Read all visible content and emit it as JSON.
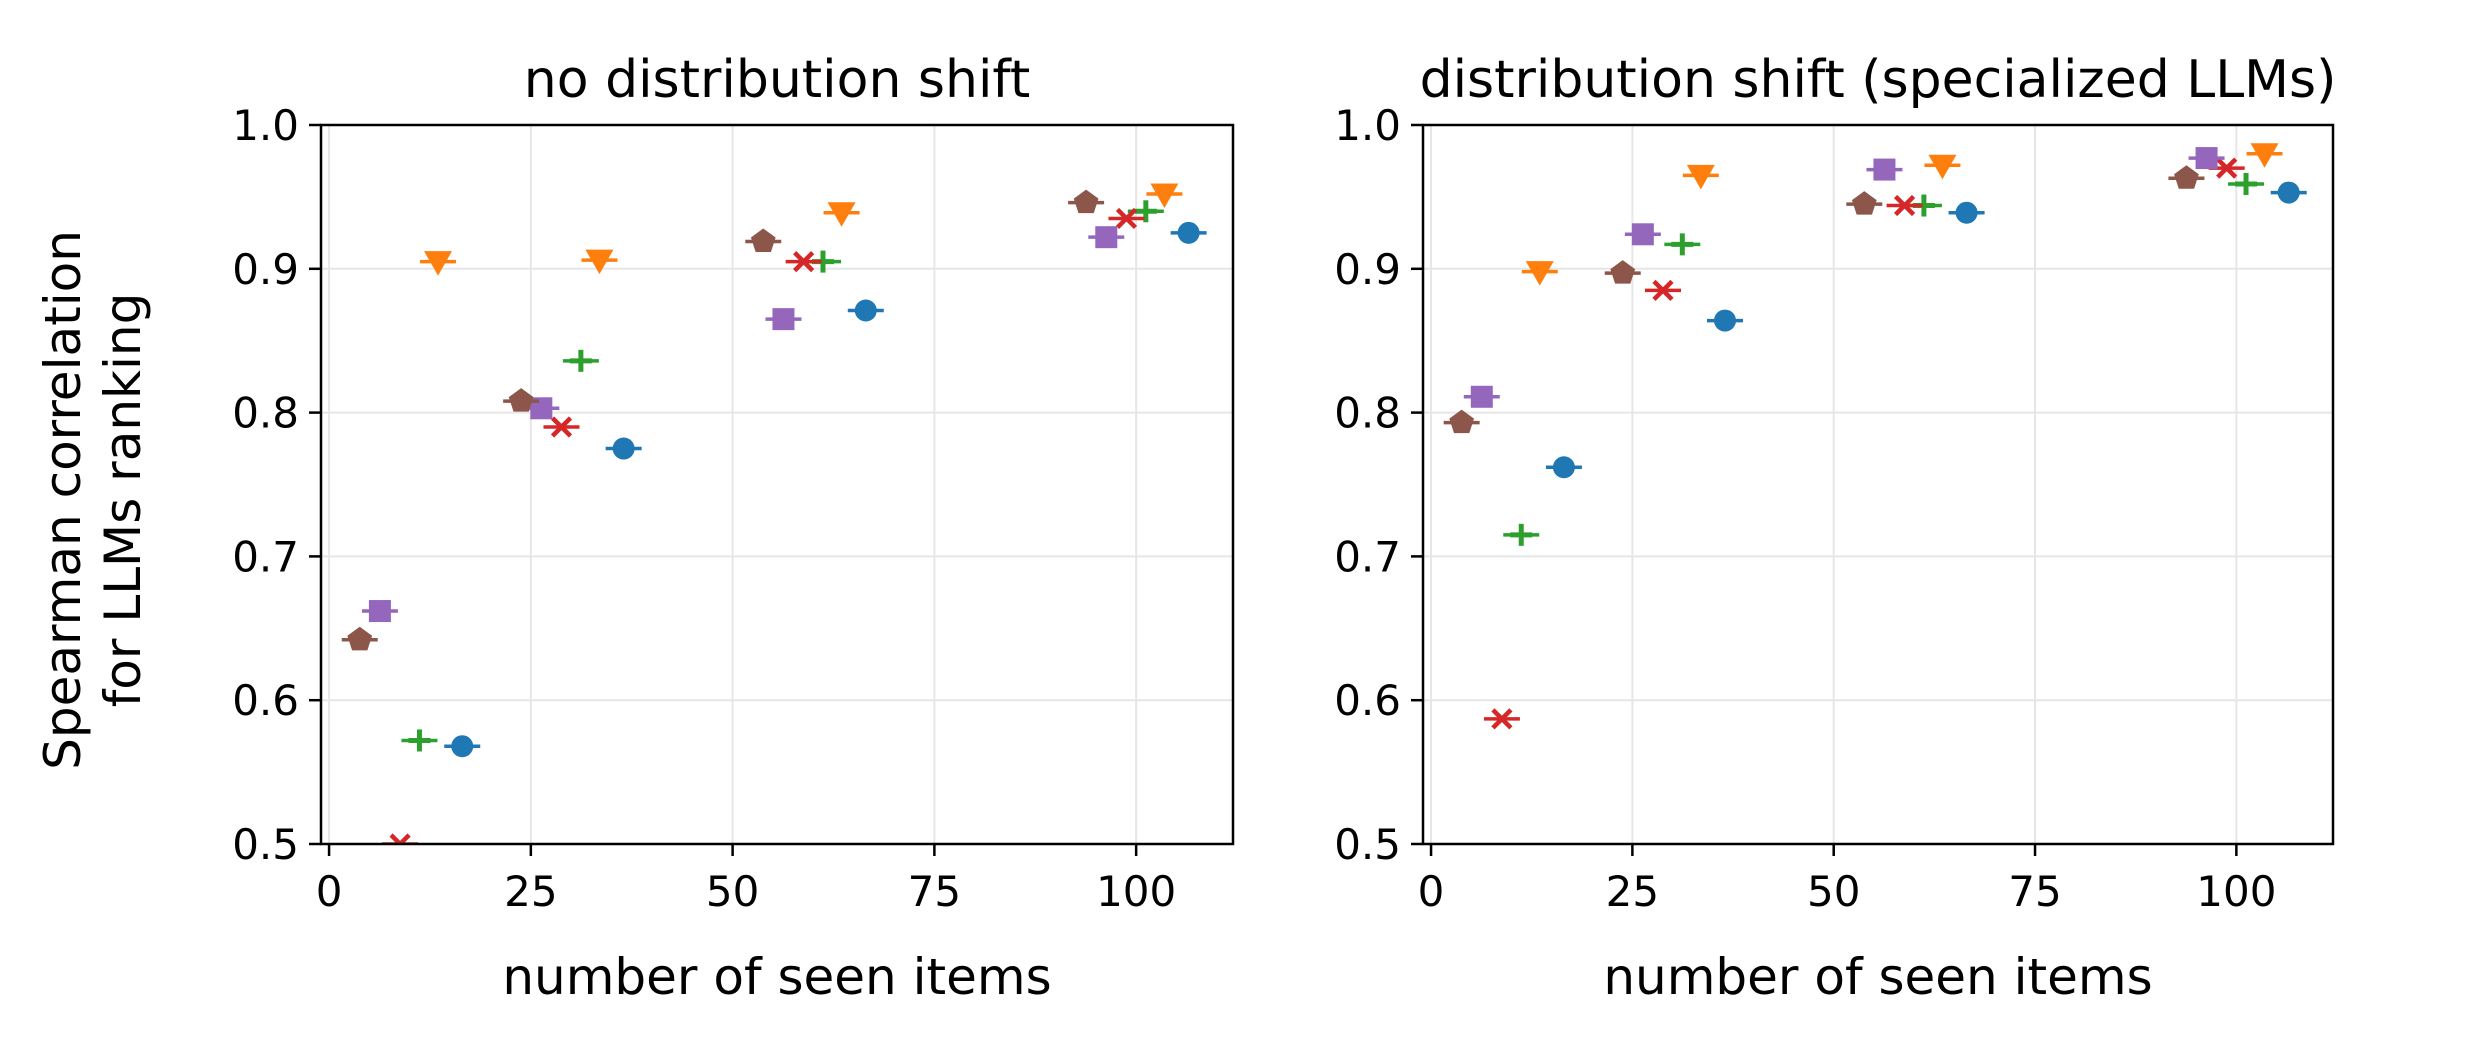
{
  "figure": {
    "ylabel_line1": "Spearman correlation",
    "ylabel_line2": "for LLMs ranking"
  },
  "chart_data": [
    {
      "type": "scatter",
      "title": "no distribution shift",
      "xlabel": "number of seen items",
      "ylabel": "Spearman correlation for LLMs ranking",
      "xlim": [
        -1,
        112
      ],
      "ylim": [
        0.5,
        1.0
      ],
      "xticks": [
        0,
        25,
        50,
        75,
        100
      ],
      "yticks": [
        0.5,
        0.6,
        0.7,
        0.8,
        0.9,
        1.0
      ],
      "grid": true,
      "x_tick_labels": [
        "0",
        "25",
        "50",
        "75",
        "100"
      ],
      "y_tick_labels": [
        "0.5",
        "0.6",
        "0.7",
        "0.8",
        "0.9",
        "1.0"
      ],
      "series": [
        {
          "color": "#1f77b4",
          "marker": "circle",
          "points": [
            [
              16.5,
              0.568
            ],
            [
              36.5,
              0.775
            ],
            [
              66.5,
              0.871
            ],
            [
              106.5,
              0.925
            ]
          ]
        },
        {
          "color": "#ff7f0e",
          "marker": "triangle-down",
          "points": [
            [
              13.5,
              0.905
            ],
            [
              33.5,
              0.906
            ],
            [
              63.5,
              0.939
            ],
            [
              103.5,
              0.952
            ]
          ]
        },
        {
          "color": "#2ca02c",
          "marker": "plus",
          "points": [
            [
              11.2,
              0.572
            ],
            [
              31.2,
              0.836
            ],
            [
              61.2,
              0.905
            ],
            [
              101.2,
              0.94
            ]
          ]
        },
        {
          "color": "#d62728",
          "marker": "x",
          "points": [
            [
              8.8,
              0.5
            ],
            [
              28.8,
              0.79
            ],
            [
              58.8,
              0.905
            ],
            [
              98.8,
              0.935
            ]
          ]
        },
        {
          "color": "#9467bd",
          "marker": "square",
          "points": [
            [
              6.3,
              0.662
            ],
            [
              26.3,
              0.803
            ],
            [
              56.3,
              0.865
            ],
            [
              96.3,
              0.922
            ]
          ]
        },
        {
          "color": "#8c564b",
          "marker": "pentagon",
          "points": [
            [
              3.8,
              0.642
            ],
            [
              23.8,
              0.808
            ],
            [
              53.8,
              0.919
            ],
            [
              93.8,
              0.946
            ]
          ]
        }
      ]
    },
    {
      "type": "scatter",
      "title": "distribution shift (specialized LLMs)",
      "xlabel": "number of seen items",
      "ylabel": "",
      "xlim": [
        -1,
        112
      ],
      "ylim": [
        0.5,
        1.0
      ],
      "xticks": [
        0,
        25,
        50,
        75,
        100
      ],
      "yticks": [
        0.5,
        0.6,
        0.7,
        0.8,
        0.9,
        1.0
      ],
      "grid": true,
      "x_tick_labels": [
        "0",
        "25",
        "50",
        "75",
        "100"
      ],
      "y_tick_labels": [
        "0.5",
        "0.6",
        "0.7",
        "0.8",
        "0.9",
        "1.0"
      ],
      "series": [
        {
          "color": "#1f77b4",
          "marker": "circle",
          "points": [
            [
              16.5,
              0.762
            ],
            [
              36.5,
              0.864
            ],
            [
              66.5,
              0.939
            ],
            [
              106.5,
              0.953
            ]
          ]
        },
        {
          "color": "#ff7f0e",
          "marker": "triangle-down",
          "points": [
            [
              13.5,
              0.898
            ],
            [
              33.5,
              0.965
            ],
            [
              63.5,
              0.972
            ],
            [
              103.5,
              0.98
            ]
          ]
        },
        {
          "color": "#2ca02c",
          "marker": "plus",
          "points": [
            [
              11.2,
              0.715
            ],
            [
              31.2,
              0.917
            ],
            [
              61.2,
              0.944
            ],
            [
              101.2,
              0.959
            ]
          ]
        },
        {
          "color": "#d62728",
          "marker": "x",
          "points": [
            [
              8.8,
              0.587
            ],
            [
              28.8,
              0.885
            ],
            [
              58.8,
              0.944
            ],
            [
              98.8,
              0.97
            ]
          ]
        },
        {
          "color": "#9467bd",
          "marker": "square",
          "points": [
            [
              6.3,
              0.811
            ],
            [
              26.3,
              0.924
            ],
            [
              56.3,
              0.969
            ],
            [
              96.3,
              0.977
            ]
          ]
        },
        {
          "color": "#8c564b",
          "marker": "pentagon",
          "points": [
            [
              3.8,
              0.793
            ],
            [
              23.8,
              0.897
            ],
            [
              53.8,
              0.945
            ],
            [
              93.8,
              0.963
            ]
          ]
        }
      ]
    }
  ]
}
